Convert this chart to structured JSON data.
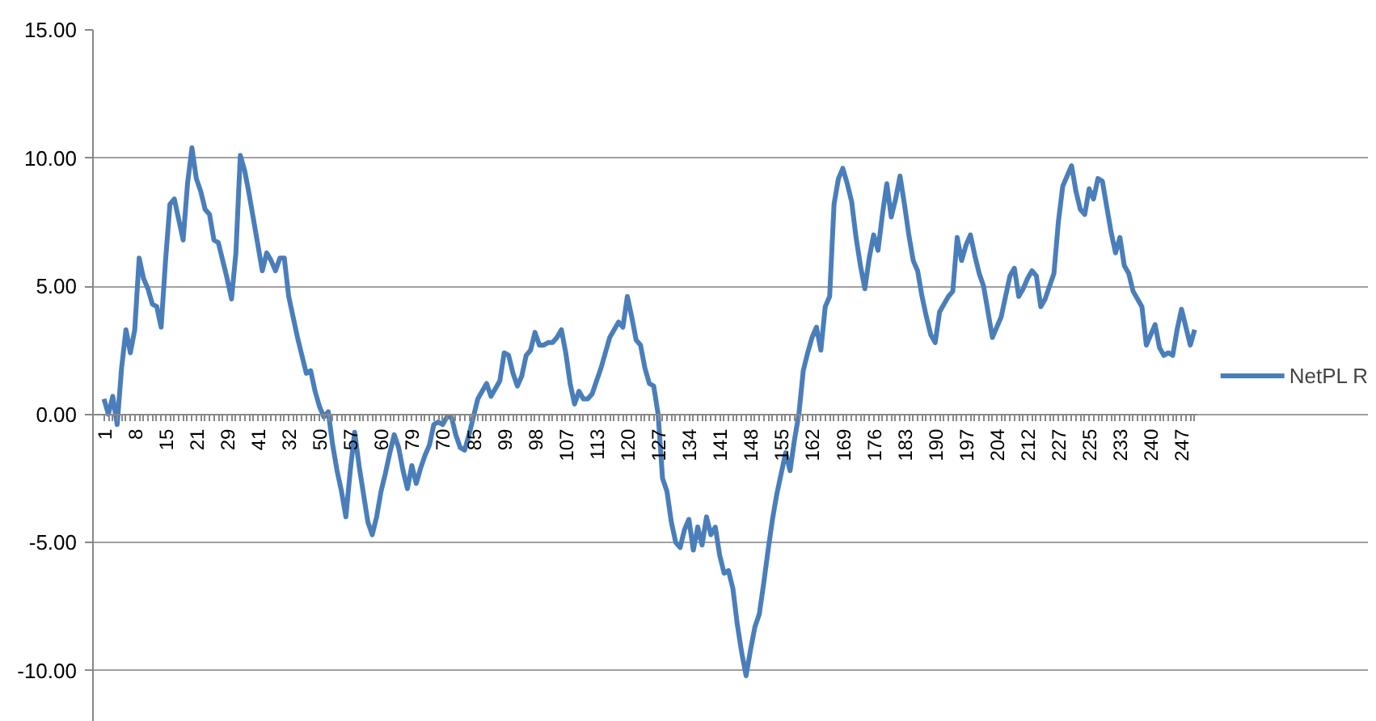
{
  "chart_data": {
    "type": "line",
    "categories": [
      "1",
      null,
      null,
      null,
      null,
      null,
      null,
      "8",
      null,
      null,
      null,
      null,
      null,
      null,
      "15",
      null,
      null,
      null,
      null,
      null,
      null,
      "21",
      null,
      null,
      null,
      null,
      null,
      null,
      "29",
      null,
      null,
      null,
      null,
      null,
      null,
      "41",
      null,
      null,
      null,
      null,
      null,
      null,
      "32",
      null,
      null,
      null,
      null,
      null,
      null,
      "50",
      null,
      null,
      null,
      null,
      null,
      null,
      "57",
      null,
      null,
      null,
      null,
      null,
      null,
      "60",
      null,
      null,
      null,
      null,
      null,
      null,
      "79",
      null,
      null,
      null,
      null,
      null,
      null,
      "70",
      null,
      null,
      null,
      null,
      null,
      null,
      "85",
      null,
      null,
      null,
      null,
      null,
      null,
      "99",
      null,
      null,
      null,
      null,
      null,
      null,
      "98",
      null,
      null,
      null,
      null,
      null,
      null,
      "107",
      null,
      null,
      null,
      null,
      null,
      null,
      "113",
      null,
      null,
      null,
      null,
      null,
      null,
      "120",
      null,
      null,
      null,
      null,
      null,
      null,
      "127",
      null,
      null,
      null,
      null,
      null,
      null,
      "134",
      null,
      null,
      null,
      null,
      null,
      null,
      "141",
      null,
      null,
      null,
      null,
      null,
      null,
      "148",
      null,
      null,
      null,
      null,
      null,
      null,
      "155",
      null,
      null,
      null,
      null,
      null,
      null,
      "162",
      null,
      null,
      null,
      null,
      null,
      null,
      "169",
      null,
      null,
      null,
      null,
      null,
      null,
      "176",
      null,
      null,
      null,
      null,
      null,
      null,
      "183",
      null,
      null,
      null,
      null,
      null,
      null,
      "190",
      null,
      null,
      null,
      null,
      null,
      null,
      "197",
      null,
      null,
      null,
      null,
      null,
      null,
      "204",
      null,
      null,
      null,
      null,
      null,
      null,
      "212",
      null,
      null,
      null,
      null,
      null,
      null,
      "227",
      null,
      null,
      null,
      null,
      null,
      null,
      "225",
      null,
      null,
      null,
      null,
      null,
      null,
      "233",
      null,
      null,
      null,
      null,
      null,
      null,
      "240",
      null,
      null,
      null,
      null,
      null,
      null,
      "247",
      null,
      null,
      null
    ],
    "series": [
      {
        "name": "NetPL R",
        "color": "#4a7ebb",
        "values": [
          0.6,
          0.0,
          0.7,
          -0.4,
          1.8,
          3.3,
          2.4,
          3.3,
          6.1,
          5.3,
          4.9,
          4.3,
          4.2,
          3.4,
          6.0,
          8.2,
          8.4,
          7.6,
          6.8,
          9.0,
          10.4,
          9.2,
          8.7,
          8.0,
          7.8,
          6.8,
          6.7,
          6.0,
          5.3,
          4.5,
          6.3,
          10.1,
          9.5,
          8.6,
          7.6,
          6.6,
          5.6,
          6.3,
          6.0,
          5.6,
          6.1,
          6.1,
          4.6,
          3.8,
          3.0,
          2.3,
          1.6,
          1.7,
          0.9,
          0.3,
          -0.1,
          0.1,
          -1.2,
          -2.2,
          -3.0,
          -4.0,
          -2.2,
          -0.7,
          -2.0,
          -3.1,
          -4.2,
          -4.7,
          -4.0,
          -3.0,
          -2.3,
          -1.5,
          -0.8,
          -1.3,
          -2.2,
          -2.9,
          -2.0,
          -2.7,
          -2.1,
          -1.6,
          -1.2,
          -0.4,
          -0.3,
          -0.4,
          -0.1,
          -0.1,
          -0.8,
          -1.3,
          -1.4,
          -0.8,
          -0.1,
          0.6,
          0.9,
          1.2,
          0.7,
          1.0,
          1.3,
          2.4,
          2.3,
          1.6,
          1.1,
          1.5,
          2.3,
          2.5,
          3.2,
          2.7,
          2.7,
          2.8,
          2.8,
          3.0,
          3.3,
          2.4,
          1.2,
          0.4,
          0.9,
          0.6,
          0.6,
          0.8,
          1.3,
          1.8,
          2.4,
          3.0,
          3.3,
          3.6,
          3.4,
          4.6,
          3.8,
          2.9,
          2.7,
          1.8,
          1.2,
          1.1,
          0.0,
          -2.5,
          -3.0,
          -4.2,
          -5.0,
          -5.2,
          -4.5,
          -4.1,
          -5.3,
          -4.4,
          -5.1,
          -4.0,
          -4.7,
          -4.4,
          -5.5,
          -6.2,
          -6.1,
          -6.8,
          -8.2,
          -9.3,
          -10.2,
          -9.2,
          -8.3,
          -7.8,
          -6.6,
          -5.3,
          -4.1,
          -3.1,
          -2.3,
          -1.5,
          -2.2,
          -1.0,
          0.0,
          1.7,
          2.4,
          3.0,
          3.4,
          2.5,
          4.2,
          4.6,
          8.2,
          9.2,
          9.6,
          9.0,
          8.3,
          6.9,
          5.8,
          4.9,
          6.1,
          7.0,
          6.4,
          7.8,
          9.0,
          7.7,
          8.4,
          9.3,
          8.2,
          7.0,
          6.0,
          5.6,
          4.6,
          3.8,
          3.1,
          2.8,
          4.0,
          4.3,
          4.6,
          4.8,
          6.9,
          6.0,
          6.6,
          7.0,
          6.2,
          5.5,
          5.0,
          4.0,
          3.0,
          3.4,
          3.8,
          4.6,
          5.4,
          5.7,
          4.6,
          4.9,
          5.3,
          5.6,
          5.4,
          4.2,
          4.5,
          5.0,
          5.5,
          7.5,
          8.9,
          9.3,
          9.7,
          8.7,
          8.0,
          7.8,
          8.8,
          8.4,
          9.2,
          9.1,
          8.1,
          7.1,
          6.3,
          6.9,
          5.8,
          5.5,
          4.8,
          4.5,
          4.2,
          2.7,
          3.1,
          3.5,
          2.6,
          2.3,
          2.4,
          2.3,
          3.3,
          4.1,
          3.4,
          2.7,
          3.3
        ]
      }
    ],
    "ylim": [
      -12,
      15
    ],
    "yticks": [
      {
        "value": -10,
        "label": "-10.00"
      },
      {
        "value": -5,
        "label": "-5.00"
      },
      {
        "value": 0,
        "label": "0.00"
      },
      {
        "value": 5,
        "label": "5.00"
      },
      {
        "value": 10,
        "label": "10.00"
      },
      {
        "value": 15,
        "label": "15.00"
      }
    ],
    "grid": "y",
    "legend": "right",
    "marker": "none",
    "line_style": "solid"
  }
}
